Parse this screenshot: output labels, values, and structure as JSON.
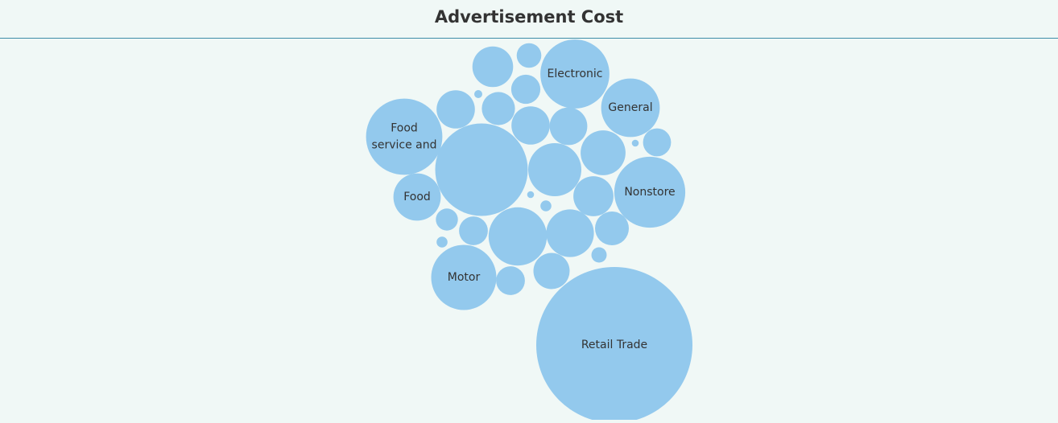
{
  "header": {
    "title": "Advertisement Cost"
  },
  "colors": {
    "bubble": "#93c9ed",
    "background": "#f0f8f6",
    "header_border": "#3d8da8",
    "label": "#333333"
  },
  "chart_data": {
    "type": "bubble",
    "title": "Advertisement Cost",
    "legend": "none",
    "bubbles": [
      {
        "label": "Retail Trade",
        "lines": [
          "Retail Trade"
        ],
        "value": 100
      },
      {
        "label": "",
        "lines": [],
        "value": 35.2
      },
      {
        "label": "Food service and",
        "lines": [
          "Food",
          "service and"
        ],
        "value": 23.9
      },
      {
        "label": "Nonstore",
        "lines": [
          "Nonstore"
        ],
        "value": 20.7
      },
      {
        "label": "Electronic",
        "lines": [
          "Electronic"
        ],
        "value": 19.6
      },
      {
        "label": "Motor",
        "lines": [
          "Motor"
        ],
        "value": 17.4
      },
      {
        "label": "",
        "lines": [],
        "value": 13.9
      },
      {
        "label": "General",
        "lines": [
          "General"
        ],
        "value": 14.1
      },
      {
        "label": "",
        "lines": [],
        "value": 11.6
      },
      {
        "label": "",
        "lines": [],
        "value": 9.3
      },
      {
        "label": "Food",
        "lines": [
          "Food"
        ],
        "value": 9.2
      },
      {
        "label": "",
        "lines": [],
        "value": 8.3
      },
      {
        "label": "",
        "lines": [],
        "value": 6.8
      },
      {
        "label": "",
        "lines": [],
        "value": 6.6
      },
      {
        "label": "",
        "lines": [],
        "value": 6.0
      },
      {
        "label": "",
        "lines": [],
        "value": 6.0
      },
      {
        "label": "",
        "lines": [],
        "value": 5.8
      },
      {
        "label": "",
        "lines": [],
        "value": 5.4
      },
      {
        "label": "",
        "lines": [],
        "value": 4.7
      },
      {
        "label": "",
        "lines": [],
        "value": 4.5
      },
      {
        "label": "",
        "lines": [],
        "value": 3.5
      },
      {
        "label": "",
        "lines": [],
        "value": 3.4
      },
      {
        "label": "",
        "lines": [],
        "value": 3.4
      },
      {
        "label": "",
        "lines": [],
        "value": 3.2
      },
      {
        "label": "",
        "lines": [],
        "value": 2.5
      },
      {
        "label": "",
        "lines": [],
        "value": 2.0
      },
      {
        "label": "",
        "lines": [],
        "value": 0.96
      },
      {
        "label": "",
        "lines": [],
        "value": 0.49
      },
      {
        "label": "",
        "lines": [],
        "value": 0.49
      },
      {
        "label": "",
        "lines": [],
        "value": 0.27
      },
      {
        "label": "",
        "lines": [],
        "value": 0.2
      },
      {
        "label": "",
        "lines": [],
        "value": 0.2
      }
    ]
  }
}
